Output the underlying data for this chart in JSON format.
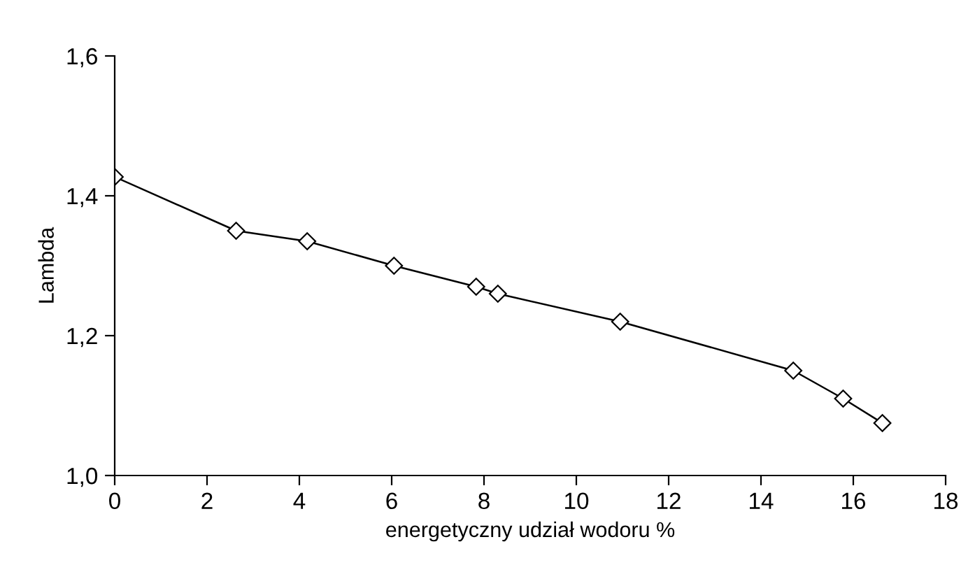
{
  "chart_data": {
    "type": "line",
    "xlabel": "energetyczny udział wodoru %",
    "ylabel": "Lambda",
    "x": [
      0,
      2.63,
      4.17,
      6.05,
      7.83,
      8.3,
      10.95,
      14.7,
      15.78,
      16.63
    ],
    "series": [
      {
        "color": "#000000",
        "values": [
          1.427,
          1.35,
          1.335,
          1.3,
          1.27,
          1.26,
          1.22,
          1.15,
          1.11,
          1.075
        ]
      }
    ],
    "xlim": [
      0,
      18
    ],
    "xticks": [
      0,
      2,
      4,
      6,
      8,
      10,
      12,
      14,
      16,
      18
    ],
    "ylim": [
      1.0,
      1.6
    ],
    "yticks": [
      {
        "value": 1.0,
        "label": "1,0"
      },
      {
        "value": 1.2,
        "label": "1,2"
      },
      {
        "value": 1.4,
        "label": "1,4"
      },
      {
        "value": 1.6,
        "label": "1,6"
      }
    ],
    "marker": "diamond",
    "grid": false,
    "legend": false
  }
}
